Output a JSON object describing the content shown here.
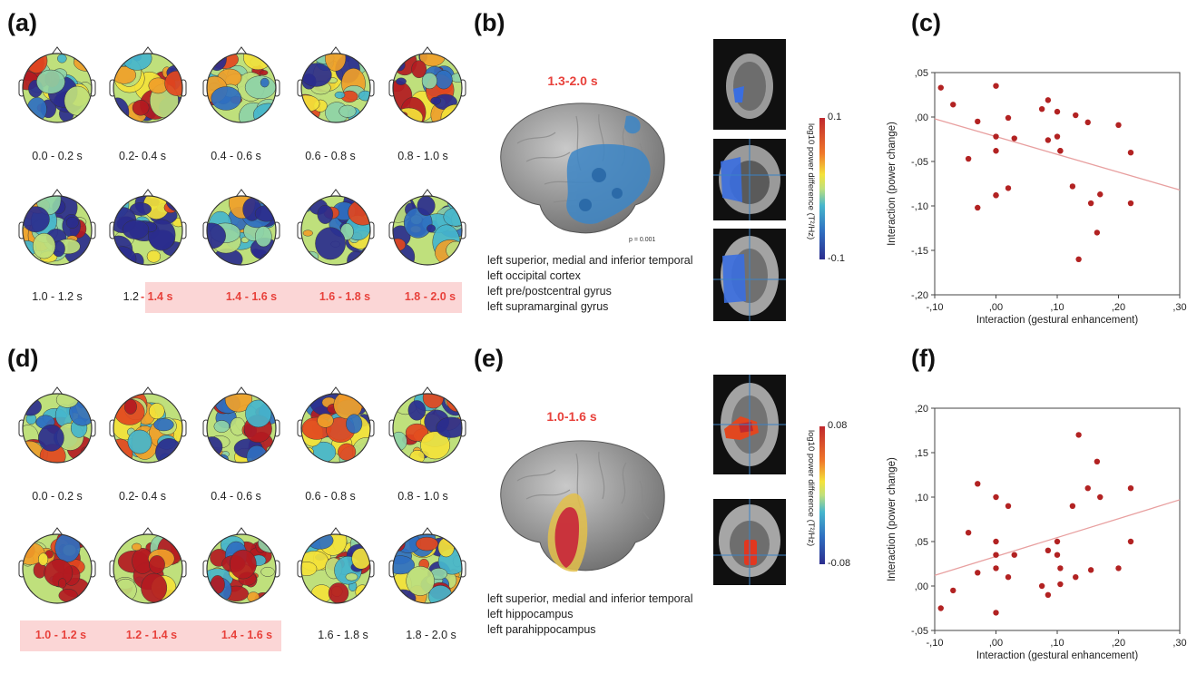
{
  "panel_letters": {
    "a": "(a)",
    "b": "(b)",
    "c": "(c)",
    "d": "(d)",
    "e": "(e)",
    "f": "(f)"
  },
  "panel_a": {
    "row1_labels": [
      "0.0 - 0.2  s",
      "0.2- 0.4 s",
      "0.4 - 0.6 s",
      "0.6 - 0.8 s",
      "0.8 - 1.0 s"
    ],
    "row2_labels": [
      "1.0 - 1.2 s",
      "1.2",
      "- 1.4 s",
      "1.4 - 1.6 s",
      "1.6 - 1.8 s",
      "1.8 - 2.0 s"
    ]
  },
  "panel_b": {
    "period": "1.3-2.0 s",
    "p_value": "p = 0.001",
    "regions": [
      "left superior, medial and inferior temporal",
      "left occipital cortex",
      "left pre/postcentral gyrus",
      "left supramarginal gyrus"
    ],
    "colorbar_title": "log10 power difference (T²/Hz)",
    "colorbar_max": "0.1",
    "colorbar_min": "-0.1"
  },
  "panel_d": {
    "row1_labels": [
      "0.0 - 0.2 s",
      "0.2- 0.4 s",
      "0.4 - 0.6 s",
      "0.6 - 0.8 s",
      "0.8 - 1.0 s"
    ],
    "row2_labels": [
      "1.0 - 1.2 s",
      "1.2 - 1.4 s",
      "1.4 - 1.6 s",
      "1.6 - 1.8 s",
      "1.8 - 2.0 s"
    ]
  },
  "panel_e": {
    "period": "1.0-1.6 s",
    "regions": [
      "left superior, medial and inferior temporal",
      "left hippocampus",
      "left parahippocampus"
    ],
    "colorbar_title": "log10 power difference (T²/Hz)",
    "colorbar_max": "0.08",
    "colorbar_min": "-0.08"
  },
  "colors": {
    "highlight_text": "#e8413b",
    "highlight_band": "#fbd6d6",
    "dot": "#b22222",
    "fit_line": "#e8a0a0"
  },
  "chart_data": [
    {
      "type": "scatter",
      "panel": "c",
      "xlabel": "Interaction (gestural enhancement)",
      "ylabel": "Interaction (power change)",
      "xlim": [
        -0.1,
        0.3
      ],
      "ylim": [
        -0.2,
        0.05
      ],
      "xticks": [
        "-,10",
        ",00",
        ",10",
        ",20",
        ",30"
      ],
      "yticks": [
        ",05",
        ",00",
        "-,05",
        "-,10",
        "-,15",
        "-,20"
      ],
      "x": [
        -0.09,
        -0.07,
        -0.045,
        -0.03,
        -0.03,
        0.0,
        0.0,
        0.0,
        0.0,
        0.0,
        0.02,
        0.02,
        0.03,
        0.075,
        0.085,
        0.085,
        0.1,
        0.1,
        0.105,
        0.105,
        0.125,
        0.13,
        0.135,
        0.15,
        0.155,
        0.165,
        0.17,
        0.2,
        0.22,
        0.22
      ],
      "y": [
        0.033,
        0.014,
        -0.047,
        -0.102,
        -0.005,
        0.035,
        -0.022,
        -0.038,
        -0.088,
        -0.088,
        -0.08,
        -0.001,
        -0.024,
        0.009,
        0.019,
        -0.026,
        0.006,
        -0.022,
        -0.038,
        -0.038,
        -0.078,
        0.002,
        -0.16,
        -0.006,
        -0.097,
        -0.13,
        -0.087,
        -0.009,
        -0.04,
        -0.097
      ],
      "fit_line": {
        "x": [
          -0.1,
          0.3
        ],
        "y": [
          -0.002,
          -0.082
        ]
      },
      "grid": false
    },
    {
      "type": "scatter",
      "panel": "f",
      "xlabel": "Interaction (gestural enhancement)",
      "ylabel": "Interaction (power change)",
      "xlim": [
        -0.1,
        0.3
      ],
      "ylim": [
        -0.05,
        0.2
      ],
      "xticks": [
        "-,10",
        ",00",
        ",10",
        ",20",
        ",30"
      ],
      "yticks": [
        ",20",
        ",15",
        ",10",
        ",05",
        ",00",
        "-,05"
      ],
      "x": [
        -0.09,
        -0.07,
        -0.045,
        -0.03,
        -0.03,
        0.0,
        0.0,
        0.0,
        0.0,
        0.0,
        0.02,
        0.02,
        0.03,
        0.075,
        0.085,
        0.085,
        0.1,
        0.1,
        0.105,
        0.105,
        0.125,
        0.13,
        0.135,
        0.15,
        0.155,
        0.165,
        0.17,
        0.2,
        0.22,
        0.22
      ],
      "y": [
        -0.025,
        -0.005,
        0.06,
        0.115,
        0.015,
        0.1,
        0.05,
        0.035,
        -0.03,
        0.02,
        0.09,
        0.01,
        0.035,
        0.0,
        0.04,
        -0.01,
        0.05,
        0.035,
        0.002,
        0.02,
        0.09,
        0.01,
        0.17,
        0.11,
        0.018,
        0.14,
        0.1,
        0.02,
        0.11,
        0.05
      ],
      "fit_line": {
        "x": [
          -0.1,
          0.3
        ],
        "y": [
          0.012,
          0.097
        ]
      },
      "grid": false
    }
  ]
}
